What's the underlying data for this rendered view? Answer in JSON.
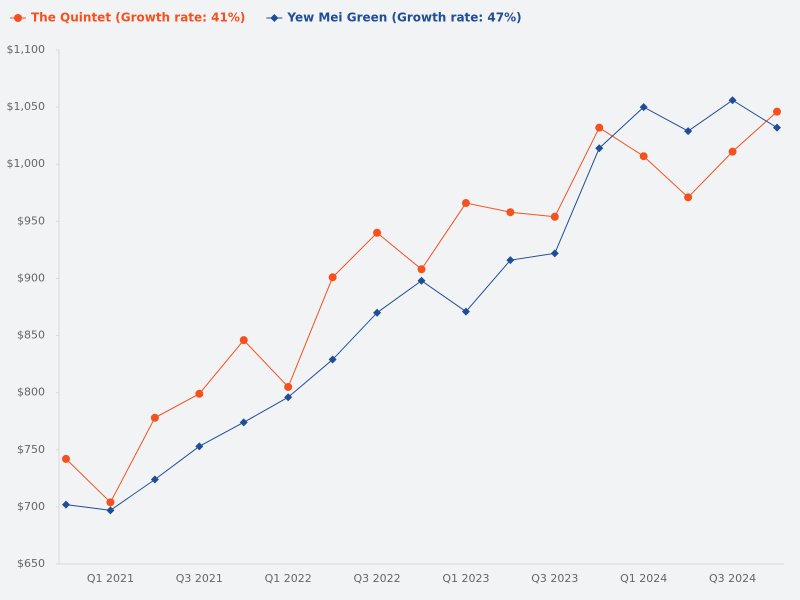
{
  "chart_data": {
    "type": "line",
    "categories": [
      null,
      "Q1 2021",
      null,
      "Q3 2021",
      null,
      "Q1 2022",
      null,
      "Q3 2022",
      null,
      "Q1 2023",
      null,
      "Q3 2023",
      null,
      "Q1 2024",
      null,
      "Q3 2024",
      null
    ],
    "series": [
      {
        "name": "The Quintet (Growth rate: 41%)",
        "color": "#f4511e",
        "marker": "circle",
        "values": [
          742,
          704,
          778,
          799,
          846,
          805,
          901,
          940,
          908,
          966,
          958,
          954,
          1032,
          1007,
          971,
          1011,
          1046
        ]
      },
      {
        "name": "Yew Mei Green (Growth rate: 47%)",
        "color": "#1f4e96",
        "marker": "diamond",
        "values": [
          702,
          697,
          724,
          753,
          774,
          796,
          829,
          870,
          898,
          871,
          916,
          922,
          1014,
          1050,
          1029,
          1056,
          1032
        ]
      }
    ],
    "ylim": [
      650,
      1100
    ],
    "yticks": [
      {
        "value": 650,
        "label": "$650"
      },
      {
        "value": 700,
        "label": "$700"
      },
      {
        "value": 750,
        "label": "$750"
      },
      {
        "value": 800,
        "label": "$800"
      },
      {
        "value": 850,
        "label": "$850"
      },
      {
        "value": 900,
        "label": "$900"
      },
      {
        "value": 950,
        "label": "$950"
      },
      {
        "value": 1000,
        "label": "$1,000"
      },
      {
        "value": 1050,
        "label": "$1,050"
      },
      {
        "value": 1100,
        "label": "$1,100"
      }
    ],
    "grid": false,
    "legend": "top-left"
  }
}
